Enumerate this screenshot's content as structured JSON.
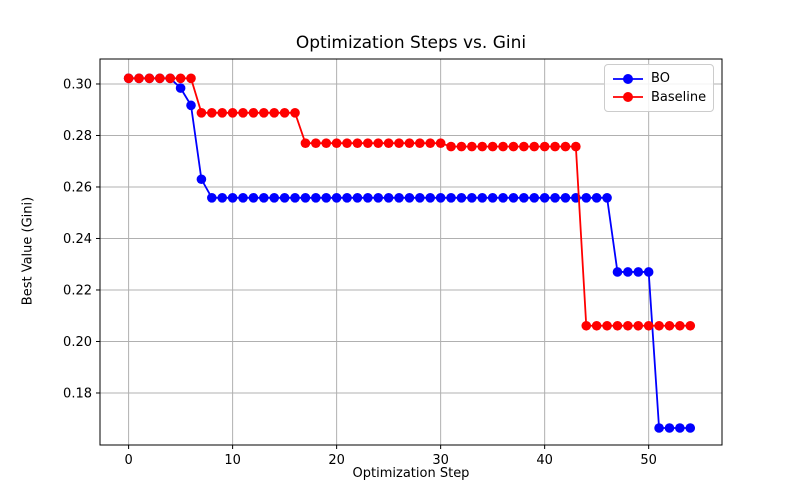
{
  "chart_data": {
    "type": "line",
    "title": "Optimization Steps vs. Gini",
    "xlabel": "Optimization Step",
    "ylabel": "Best Value (Gini)",
    "grid": true,
    "legend_position": "upper right",
    "xlim": [
      -2.75,
      57.05
    ],
    "ylim": [
      0.1598,
      0.3097
    ],
    "xticks": [
      0,
      10,
      20,
      30,
      40,
      50
    ],
    "xticklabels": [
      "0",
      "10",
      "20",
      "30",
      "40",
      "50"
    ],
    "yticks": [
      0.18,
      0.2,
      0.22,
      0.24,
      0.26,
      0.28,
      0.3
    ],
    "yticklabels": [
      "0.18",
      "0.20",
      "0.22",
      "0.24",
      "0.26",
      "0.28",
      "0.30"
    ],
    "x": [
      0,
      1,
      2,
      3,
      4,
      5,
      6,
      7,
      8,
      9,
      10,
      11,
      12,
      13,
      14,
      15,
      16,
      17,
      18,
      19,
      20,
      21,
      22,
      23,
      24,
      25,
      26,
      27,
      28,
      29,
      30,
      31,
      32,
      33,
      34,
      35,
      36,
      37,
      38,
      39,
      40,
      41,
      42,
      43,
      44,
      45,
      46,
      47,
      48,
      49,
      50,
      51,
      52,
      53,
      54
    ],
    "series": [
      {
        "name": "BO",
        "color": "#0000ff",
        "values": [
          0.3022,
          0.3022,
          0.3022,
          0.3022,
          0.3022,
          0.2984,
          0.2917,
          0.263,
          0.2558,
          0.2558,
          0.2558,
          0.2558,
          0.2558,
          0.2558,
          0.2558,
          0.2558,
          0.2558,
          0.2558,
          0.2558,
          0.2558,
          0.2558,
          0.2558,
          0.2558,
          0.2558,
          0.2558,
          0.2558,
          0.2558,
          0.2558,
          0.2558,
          0.2558,
          0.2558,
          0.2558,
          0.2558,
          0.2558,
          0.2558,
          0.2558,
          0.2558,
          0.2558,
          0.2558,
          0.2558,
          0.2558,
          0.2558,
          0.2558,
          0.2558,
          0.2558,
          0.2558,
          0.2558,
          0.227,
          0.227,
          0.227,
          0.227,
          0.1664,
          0.1664,
          0.1664,
          0.1664
        ]
      },
      {
        "name": "Baseline",
        "color": "#ff0000",
        "values": [
          0.3022,
          0.3022,
          0.3022,
          0.3022,
          0.3022,
          0.3022,
          0.3022,
          0.2888,
          0.2888,
          0.2888,
          0.2888,
          0.2888,
          0.2888,
          0.2888,
          0.2888,
          0.2888,
          0.2888,
          0.277,
          0.277,
          0.277,
          0.277,
          0.277,
          0.277,
          0.277,
          0.277,
          0.277,
          0.277,
          0.277,
          0.277,
          0.277,
          0.277,
          0.2757,
          0.2757,
          0.2757,
          0.2757,
          0.2757,
          0.2757,
          0.2757,
          0.2757,
          0.2757,
          0.2757,
          0.2757,
          0.2757,
          0.2757,
          0.2061,
          0.2061,
          0.2061,
          0.2061,
          0.2061,
          0.2061,
          0.2061,
          0.2061,
          0.2061,
          0.2061,
          0.2061
        ]
      }
    ]
  },
  "colors": {
    "grid": "#b0b0b0",
    "spine": "#000000",
    "background": "#ffffff",
    "legend_border": "#cccccc"
  }
}
